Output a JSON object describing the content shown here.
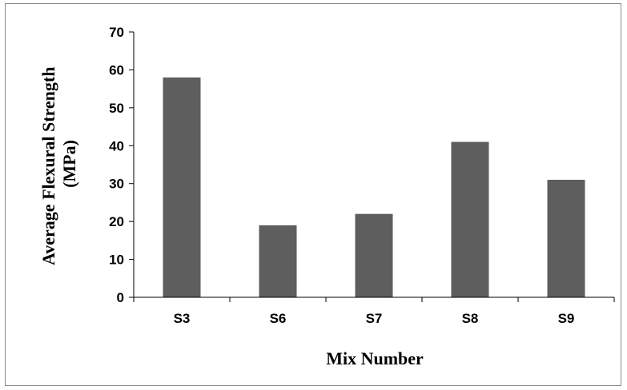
{
  "chart_data": {
    "type": "bar",
    "categories": [
      "S3",
      "S6",
      "S7",
      "S8",
      "S9"
    ],
    "values": [
      58,
      19,
      22,
      41,
      31
    ],
    "xlabel": "Mix Number",
    "ylabel_line1": "Average Flexural Strength",
    "ylabel_line2": "(MPa)",
    "ylim": [
      0,
      70
    ],
    "yticks": [
      "0",
      "10",
      "20",
      "30",
      "40",
      "50",
      "60",
      "70"
    ],
    "grid": false,
    "legend": "none",
    "bar_color": "#5e5e5e"
  }
}
